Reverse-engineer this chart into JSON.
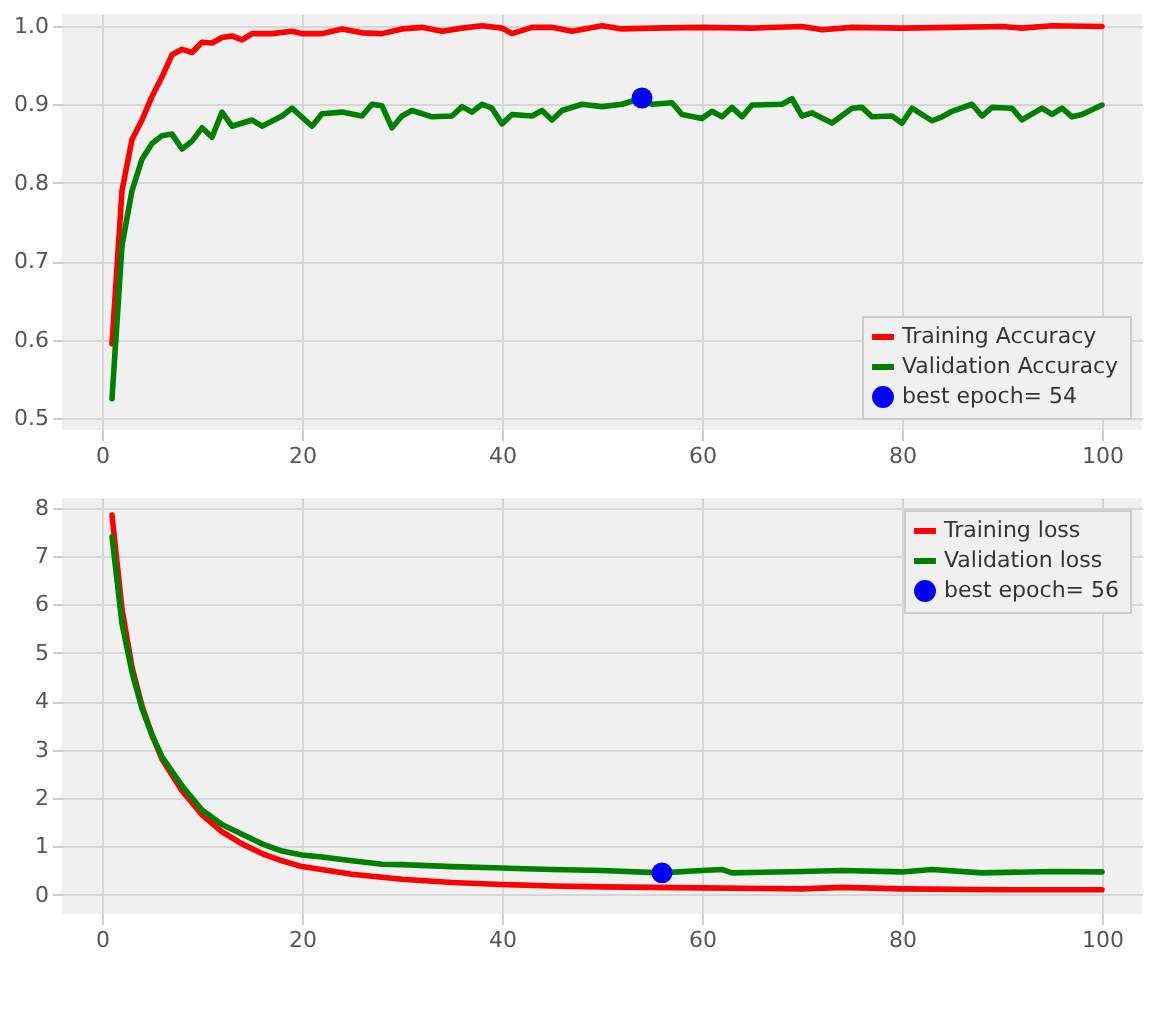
{
  "chart_data": [
    {
      "type": "line",
      "xlim": [
        -4,
        104
      ],
      "ylim": [
        0.485,
        1.015
      ],
      "xticks": [
        0,
        20,
        40,
        60,
        80,
        100
      ],
      "yticks": [
        {
          "value": 0.5,
          "label": "0.5"
        },
        {
          "value": 0.6,
          "label": "0.6"
        },
        {
          "value": 0.7,
          "label": "0.7"
        },
        {
          "value": 0.8,
          "label": "0.8"
        },
        {
          "value": 0.9,
          "label": "0.9"
        },
        {
          "value": 1,
          "label": "1.0"
        }
      ],
      "grid": true,
      "legend": "bottom right",
      "line_style": "solid",
      "series": [
        {
          "name": "Training Accuracy",
          "color": "#ff0000",
          "x": [
            1,
            2,
            3,
            4,
            5,
            6,
            7,
            8,
            9,
            10,
            11,
            12,
            13,
            14,
            15,
            17,
            19,
            20,
            22,
            24,
            26,
            28,
            30,
            32,
            34,
            36,
            38,
            40,
            41,
            43,
            45,
            47,
            50,
            52,
            55,
            60,
            65,
            70,
            72,
            75,
            80,
            85,
            90,
            92,
            95,
            100
          ],
          "values": [
            0.595,
            0.79,
            0.855,
            0.88,
            0.91,
            0.935,
            0.963,
            0.97,
            0.966,
            0.979,
            0.978,
            0.985,
            0.987,
            0.982,
            0.99,
            0.99,
            0.993,
            0.99,
            0.99,
            0.996,
            0.991,
            0.99,
            0.996,
            0.998,
            0.993,
            0.997,
            1.0,
            0.997,
            0.99,
            0.998,
            0.998,
            0.993,
            1.0,
            0.996,
            0.997,
            0.998,
            0.997,
            0.999,
            0.995,
            0.998,
            0.997,
            0.998,
            0.999,
            0.997,
            1.0,
            0.999
          ]
        },
        {
          "name": "Validation Accuracy",
          "color": "#008000",
          "x": [
            1,
            2,
            3,
            4,
            5,
            6,
            7,
            8,
            9,
            10,
            11,
            12,
            13,
            15,
            16,
            18,
            19,
            21,
            22,
            24,
            26,
            27,
            28,
            29,
            30,
            31,
            33,
            35,
            36,
            37,
            38,
            39,
            40,
            41,
            43,
            44,
            45,
            46,
            48,
            50,
            52,
            54,
            55,
            57,
            58,
            60,
            61,
            62,
            63,
            64,
            65,
            68,
            69,
            70,
            71,
            73,
            75,
            76,
            77,
            79,
            80,
            81,
            83,
            84,
            85,
            87,
            88,
            89,
            91,
            92,
            94,
            95,
            96,
            97,
            98,
            100
          ],
          "values": [
            0.525,
            0.72,
            0.79,
            0.83,
            0.85,
            0.86,
            0.862,
            0.843,
            0.853,
            0.87,
            0.858,
            0.89,
            0.872,
            0.88,
            0.872,
            0.885,
            0.895,
            0.872,
            0.888,
            0.89,
            0.885,
            0.9,
            0.898,
            0.87,
            0.885,
            0.892,
            0.884,
            0.885,
            0.897,
            0.89,
            0.9,
            0.895,
            0.875,
            0.887,
            0.885,
            0.892,
            0.88,
            0.892,
            0.9,
            0.897,
            0.9,
            0.908,
            0.9,
            0.902,
            0.887,
            0.882,
            0.891,
            0.884,
            0.896,
            0.884,
            0.899,
            0.9,
            0.907,
            0.885,
            0.889,
            0.876,
            0.895,
            0.896,
            0.884,
            0.885,
            0.876,
            0.895,
            0.879,
            0.884,
            0.891,
            0.9,
            0.885,
            0.896,
            0.895,
            0.88,
            0.895,
            0.887,
            0.895,
            0.884,
            0.887,
            0.899
          ]
        },
        {
          "name": "best epoch= 54",
          "type": "scatter",
          "marker": "circle",
          "color": "#0000ff",
          "x": [
            54
          ],
          "values": [
            0.908
          ]
        }
      ]
    },
    {
      "type": "line",
      "xlim": [
        -4,
        104
      ],
      "ylim": [
        -0.4,
        8.2
      ],
      "xticks": [
        0,
        20,
        40,
        60,
        80,
        100
      ],
      "yticks": [
        0,
        1,
        2,
        3,
        4,
        5,
        6,
        7,
        8
      ],
      "grid": true,
      "legend": "top right",
      "line_style": "solid",
      "series": [
        {
          "name": "Training loss",
          "color": "#ff0000",
          "x": [
            1,
            2,
            3,
            4,
            5,
            6,
            8,
            10,
            12,
            14,
            16,
            18,
            20,
            25,
            30,
            35,
            40,
            45,
            50,
            60,
            70,
            74,
            80,
            90,
            100
          ],
          "values": [
            7.85,
            5.9,
            4.7,
            3.9,
            3.3,
            2.8,
            2.15,
            1.65,
            1.3,
            1.05,
            0.85,
            0.7,
            0.58,
            0.42,
            0.32,
            0.25,
            0.21,
            0.18,
            0.16,
            0.14,
            0.12,
            0.15,
            0.12,
            0.1,
            0.1
          ]
        },
        {
          "name": "Validation loss",
          "color": "#008000",
          "x": [
            1,
            2,
            3,
            4,
            5,
            6,
            8,
            10,
            12,
            14,
            16,
            18,
            20,
            22,
            25,
            28,
            30,
            35,
            40,
            45,
            50,
            56,
            60,
            62,
            63,
            70,
            74,
            80,
            83,
            88,
            95,
            100
          ],
          "values": [
            7.4,
            5.6,
            4.6,
            3.85,
            3.3,
            2.85,
            2.25,
            1.75,
            1.45,
            1.25,
            1.05,
            0.9,
            0.82,
            0.78,
            0.7,
            0.63,
            0.62,
            0.58,
            0.55,
            0.52,
            0.5,
            0.45,
            0.5,
            0.52,
            0.45,
            0.48,
            0.5,
            0.47,
            0.52,
            0.45,
            0.48,
            0.47
          ]
        },
        {
          "name": "best epoch= 56",
          "type": "scatter",
          "marker": "circle",
          "color": "#0000ff",
          "x": [
            56
          ],
          "values": [
            0.45
          ]
        }
      ]
    }
  ]
}
